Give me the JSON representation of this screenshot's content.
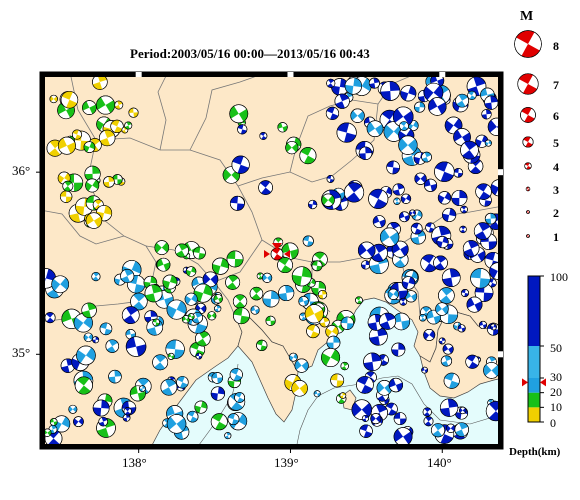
{
  "title": "Period:2003/05/16 00:00––2013/05/16 00:43",
  "axes": {
    "x_ticks": [
      {
        "value": 138,
        "label": "138°"
      },
      {
        "value": 139,
        "label": "139°"
      },
      {
        "value": 140,
        "label": "140°"
      }
    ],
    "y_ticks": [
      {
        "value": 36,
        "label": "36°"
      },
      {
        "value": 35,
        "label": "35°"
      }
    ],
    "lon_range": [
      137.35,
      140.4
    ],
    "lat_range": [
      34.48,
      36.55
    ]
  },
  "magnitude_legend": {
    "title": "M",
    "items": [
      {
        "label": "8",
        "m": 8
      },
      {
        "label": "7",
        "m": 7
      },
      {
        "label": "6",
        "m": 6
      },
      {
        "label": "5",
        "m": 5
      },
      {
        "label": "4",
        "m": 4
      },
      {
        "label": "3",
        "m": 3
      },
      {
        "label": "2",
        "m": 2
      },
      {
        "label": "1",
        "m": 1
      }
    ]
  },
  "depth_colorbar": {
    "title": "Depth(km)",
    "ticks": [
      {
        "value": 100,
        "label": "100"
      },
      {
        "value": 50,
        "label": "50"
      },
      {
        "value": 30,
        "label": "30"
      },
      {
        "value": 20,
        "label": "20"
      },
      {
        "value": 10,
        "label": "10"
      },
      {
        "value": 0,
        "label": "0"
      }
    ],
    "bands": [
      {
        "from": 0,
        "to": 10,
        "color": "#f0d000"
      },
      {
        "from": 10,
        "to": 20,
        "color": "#18c018"
      },
      {
        "from": 20,
        "to": 30,
        "color": "#20a0e0"
      },
      {
        "from": 30,
        "to": 50,
        "color": "#38b4e8"
      },
      {
        "from": 50,
        "to": 100,
        "color": "#0018c0"
      }
    ],
    "marker_depth": 27
  },
  "colors": {
    "land": "#fde8c8",
    "sea": "#e4fcfc",
    "shallow": "#f0d000",
    "mid": "#18c018",
    "deep1": "#20a0e0",
    "deep2": "#0018c0",
    "highlight": "#e00000"
  }
}
